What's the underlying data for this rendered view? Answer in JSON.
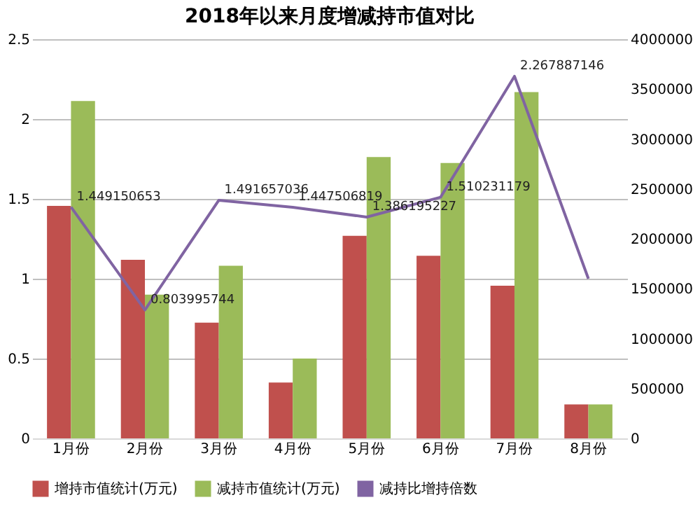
{
  "chart_data": {
    "type": "bar",
    "title": "2018年以来月度增减持市值对比",
    "categories": [
      "1月份",
      "2月份",
      "3月份",
      "4月份",
      "5月份",
      "6月份",
      "7月份",
      "8月份"
    ],
    "series": [
      {
        "name": "增持市值统计(万元)",
        "color": "#c0504d",
        "axis": "y2",
        "values": [
          2330000,
          1790000,
          1160000,
          560000,
          2030000,
          1830000,
          1530000,
          340000
        ]
      },
      {
        "name": "减持市值统计(万元)",
        "color": "#9bbb59",
        "axis": "y2",
        "values": [
          3380000,
          1440000,
          1730000,
          800000,
          2820000,
          2760000,
          3470000,
          340000
        ]
      },
      {
        "name": "减持比增持倍数",
        "color": "#8064a2",
        "type": "line",
        "values": [
          1.449150653,
          0.803995744,
          1.491657036,
          1.447506819,
          1.386195227,
          1.510231179,
          2.267887146,
          1.0
        ],
        "value_labels": [
          "1.449150653",
          "0.803995744",
          "1.491657036",
          "1.447506819",
          "1.386195227",
          "1.510231179",
          "2.267887146",
          null
        ]
      }
    ],
    "ylim": [
      0,
      2.5
    ],
    "yticks": [
      0,
      0.5,
      1,
      1.5,
      2,
      2.5
    ],
    "y2lim": [
      0,
      4000000
    ],
    "y2ticks": [
      0,
      500000,
      1000000,
      1500000,
      2000000,
      2500000,
      3000000,
      3500000,
      4000000
    ],
    "grid": "y",
    "legend": "bottom",
    "marker": "none"
  }
}
